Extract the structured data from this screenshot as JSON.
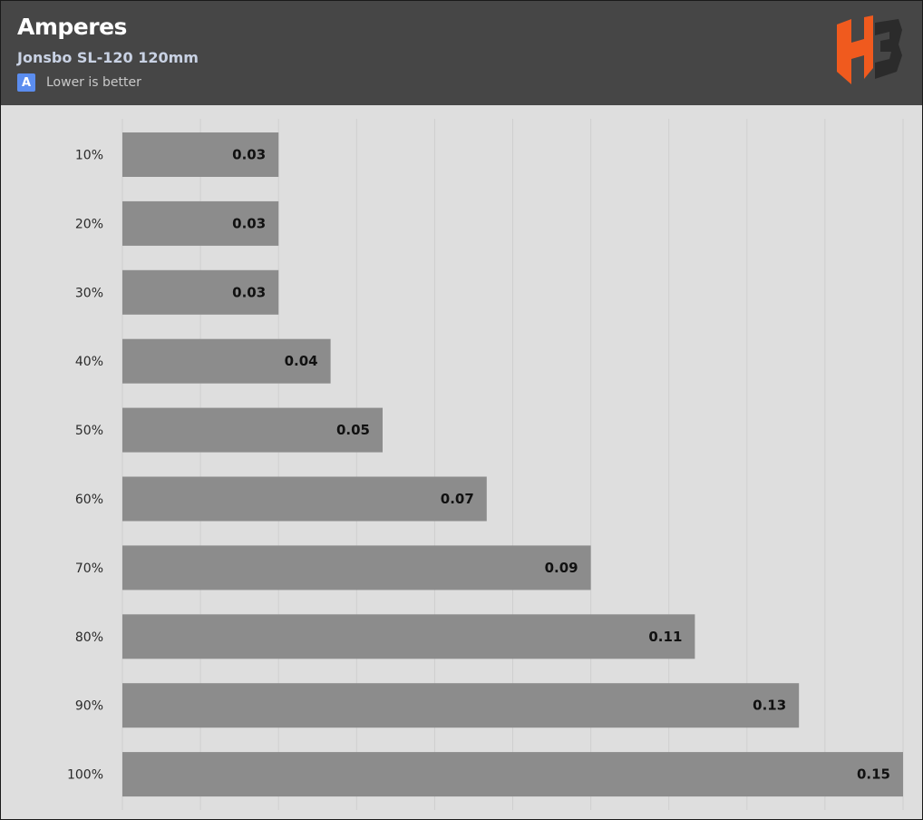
{
  "header": {
    "title": "Amperes",
    "subtitle": "Jonsbo SL-120 120mm",
    "legend_badge": "A",
    "legend_label": "Lower is better",
    "logo_icon": "hb-logo-icon"
  },
  "colors": {
    "header_bg": "#464646",
    "plot_bg": "#dedede",
    "bar": "#8c8c8c",
    "grid": "#cfcfcf",
    "legend_badge": "#5b8def",
    "logo_orange": "#f05a1e",
    "logo_dark": "#2b2b2b"
  },
  "chart_data": {
    "type": "bar",
    "orientation": "horizontal",
    "categories": [
      "10%",
      "20%",
      "30%",
      "40%",
      "50%",
      "60%",
      "70%",
      "80%",
      "90%",
      "100%"
    ],
    "series": [
      {
        "name": "A",
        "values": [
          0.03,
          0.03,
          0.03,
          0.04,
          0.05,
          0.07,
          0.09,
          0.11,
          0.13,
          0.15
        ]
      }
    ],
    "value_labels": [
      "0.03",
      "0.03",
      "0.03",
      "0.04",
      "0.05",
      "0.07",
      "0.09",
      "0.11",
      "0.13",
      "0.15"
    ],
    "title": "Amperes",
    "subtitle": "Jonsbo SL-120 120mm",
    "xlabel": "",
    "ylabel": "",
    "xlim": [
      0,
      0.15
    ],
    "grid": true,
    "legend": "top-left"
  }
}
